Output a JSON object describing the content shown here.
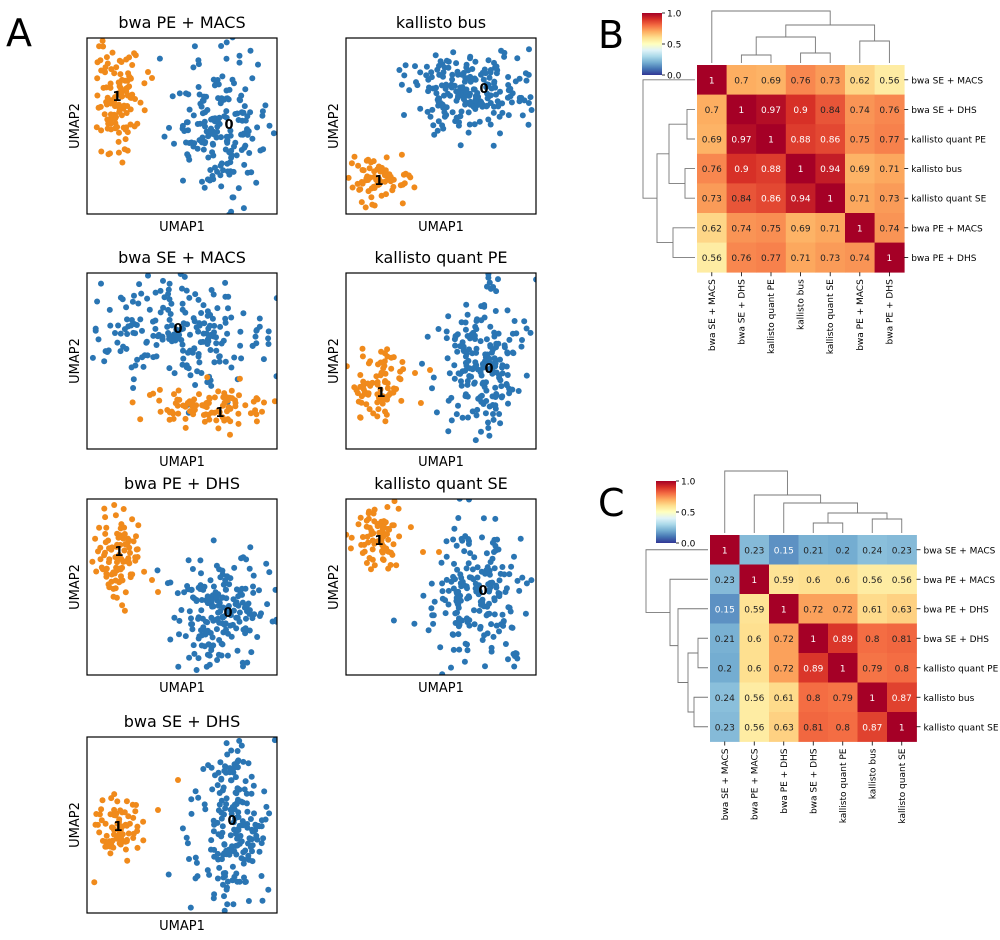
{
  "panel_letters": {
    "a": "A",
    "b": "B",
    "c": "C"
  },
  "palette": {
    "cluster_0": "#2a75b3",
    "cluster_1": "#f08a1b",
    "colormap": "RdYlBu_r"
  },
  "chart_data": [
    {
      "type": "scatter",
      "title": "bwa PE + MACS",
      "xlabel": "UMAP1",
      "ylabel": "UMAP2",
      "axis_ticks": false,
      "cluster_labels": [
        "0",
        "1"
      ]
    },
    {
      "type": "scatter",
      "title": "kallisto bus",
      "xlabel": "UMAP1",
      "ylabel": "UMAP2",
      "axis_ticks": false,
      "cluster_labels": [
        "0",
        "1"
      ]
    },
    {
      "type": "scatter",
      "title": "bwa SE + MACS",
      "xlabel": "UMAP1",
      "ylabel": "UMAP2",
      "axis_ticks": false,
      "cluster_labels": [
        "0",
        "1"
      ]
    },
    {
      "type": "scatter",
      "title": "kallisto quant PE",
      "xlabel": "UMAP1",
      "ylabel": "UMAP2",
      "axis_ticks": false,
      "cluster_labels": [
        "0",
        "1"
      ]
    },
    {
      "type": "scatter",
      "title": "bwa PE + DHS",
      "xlabel": "UMAP1",
      "ylabel": "UMAP2",
      "axis_ticks": false,
      "cluster_labels": [
        "0",
        "1"
      ]
    },
    {
      "type": "scatter",
      "title": "kallisto quant SE",
      "xlabel": "UMAP1",
      "ylabel": "UMAP2",
      "axis_ticks": false,
      "cluster_labels": [
        "0",
        "1"
      ]
    },
    {
      "type": "scatter",
      "title": "bwa SE + DHS",
      "xlabel": "UMAP1",
      "ylabel": "UMAP2",
      "axis_ticks": false,
      "cluster_labels": [
        "0",
        "1"
      ]
    },
    {
      "type": "heatmap",
      "panel": "B",
      "labels": [
        "bwa SE + MACS",
        "bwa SE + DHS",
        "kallisto quant PE",
        "kallisto bus",
        "kallisto quant SE",
        "bwa PE + MACS",
        "bwa PE + DHS"
      ],
      "matrix": [
        [
          1,
          0.7,
          0.69,
          0.76,
          0.73,
          0.62,
          0.56
        ],
        [
          0.7,
          1,
          0.97,
          0.9,
          0.84,
          0.74,
          0.76
        ],
        [
          0.69,
          0.97,
          1,
          0.88,
          0.86,
          0.75,
          0.77
        ],
        [
          0.76,
          0.9,
          0.88,
          1,
          0.94,
          0.69,
          0.71
        ],
        [
          0.73,
          0.84,
          0.86,
          0.94,
          1,
          0.71,
          0.73
        ],
        [
          0.62,
          0.74,
          0.75,
          0.69,
          0.71,
          1,
          0.74
        ],
        [
          0.56,
          0.76,
          0.77,
          0.71,
          0.73,
          0.74,
          1
        ]
      ],
      "colorbar": {
        "min": 0,
        "max": 1,
        "ticks": [
          "0.0",
          "0.5",
          "1.0"
        ]
      },
      "dendrograms": "row and column"
    },
    {
      "type": "heatmap",
      "panel": "C",
      "labels": [
        "bwa SE + MACS",
        "bwa PE + MACS",
        "bwa PE + DHS",
        "bwa SE + DHS",
        "kallisto quant PE",
        "kallisto bus",
        "kallisto quant SE"
      ],
      "matrix": [
        [
          1,
          0.23,
          0.15,
          0.21,
          0.2,
          0.24,
          0.23
        ],
        [
          0.23,
          1,
          0.59,
          0.6,
          0.6,
          0.56,
          0.56
        ],
        [
          0.15,
          0.59,
          1,
          0.72,
          0.72,
          0.61,
          0.63
        ],
        [
          0.21,
          0.6,
          0.72,
          1,
          0.89,
          0.8,
          0.81
        ],
        [
          0.2,
          0.6,
          0.72,
          0.89,
          1,
          0.79,
          0.8
        ],
        [
          0.24,
          0.56,
          0.61,
          0.8,
          0.79,
          1,
          0.87
        ],
        [
          0.23,
          0.56,
          0.63,
          0.81,
          0.8,
          0.87,
          1
        ]
      ],
      "colorbar": {
        "min": 0,
        "max": 1,
        "ticks": [
          "0.0",
          "0.5",
          "1.0"
        ]
      },
      "dendrograms": "row and column"
    }
  ]
}
